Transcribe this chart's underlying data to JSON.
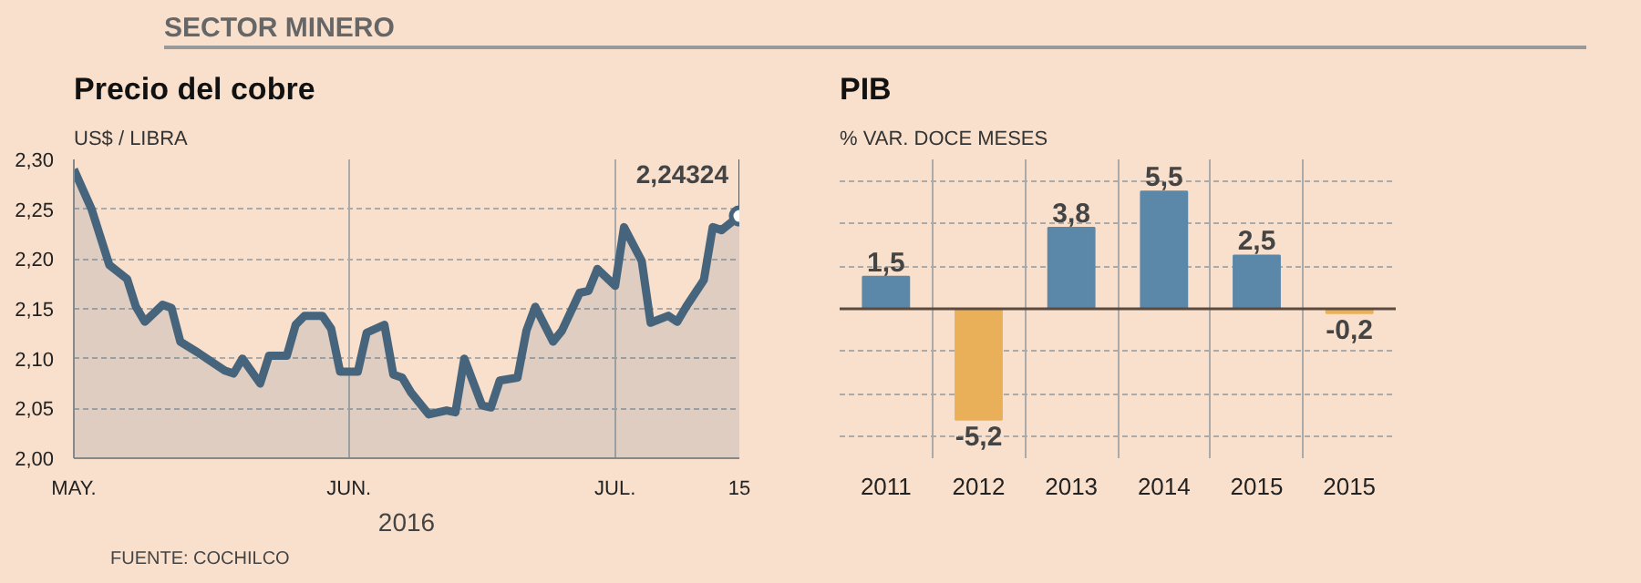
{
  "chart_data": [
    {
      "type": "area",
      "title": "Precio del cobre",
      "ylabel": "US$ / LIBRA",
      "xlabel": "2016",
      "annotations": [
        "SECTOR MINERO",
        "FUENTE: COCHILCO",
        {
          "text": "2,24324",
          "x": "2016-07-15",
          "y": 2.24324
        }
      ],
      "x": [
        "2016-05-01",
        "2016-05-03",
        "2016-05-05",
        "2016-05-07",
        "2016-05-08",
        "2016-05-09",
        "2016-05-11",
        "2016-05-12",
        "2016-05-13",
        "2016-05-15",
        "2016-05-16",
        "2016-05-18",
        "2016-05-19",
        "2016-05-20",
        "2016-05-22",
        "2016-05-23",
        "2016-05-25",
        "2016-05-26",
        "2016-05-27",
        "2016-05-29",
        "2016-05-30",
        "2016-05-31",
        "2016-06-02",
        "2016-06-03",
        "2016-06-05",
        "2016-06-06",
        "2016-06-07",
        "2016-06-08",
        "2016-06-10",
        "2016-06-12",
        "2016-06-13",
        "2016-06-14",
        "2016-06-16",
        "2016-06-17",
        "2016-06-18",
        "2016-06-20",
        "2016-06-21",
        "2016-06-22",
        "2016-06-24",
        "2016-06-25",
        "2016-06-27",
        "2016-06-28",
        "2016-06-29",
        "2016-07-01",
        "2016-07-02",
        "2016-07-04",
        "2016-07-05",
        "2016-07-07",
        "2016-07-08",
        "2016-07-09",
        "2016-07-11",
        "2016-07-12",
        "2016-07-13",
        "2016-07-15"
      ],
      "series": [
        {
          "color": "#46657d",
          "values": [
            2.29,
            2.25,
            2.194,
            2.18,
            2.152,
            2.137,
            2.154,
            2.151,
            2.117,
            2.106,
            2.1,
            2.088,
            2.085,
            2.1,
            2.075,
            2.103,
            2.103,
            2.134,
            2.143,
            2.143,
            2.13,
            2.087,
            2.087,
            2.126,
            2.134,
            2.084,
            2.081,
            2.066,
            2.044,
            2.048,
            2.046,
            2.1,
            2.053,
            2.051,
            2.078,
            2.081,
            2.128,
            2.152,
            2.117,
            2.128,
            2.166,
            2.168,
            2.19,
            2.173,
            2.232,
            2.198,
            2.136,
            2.143,
            2.137,
            2.152,
            2.179,
            2.232,
            2.229,
            2.24324
          ]
        }
      ],
      "xlim": [
        "2016-05-01",
        "2016-07-15"
      ],
      "xticks": [
        {
          "value": "2016-05-01",
          "label": "MAY."
        },
        {
          "value": "2016-06-01",
          "label": "JUN."
        },
        {
          "value": "2016-07-01",
          "label": "JUL."
        },
        {
          "value": "2016-07-15",
          "label": "15"
        }
      ],
      "ylim": [
        2.0,
        2.3
      ],
      "yticks": [
        {
          "value": 2.0,
          "label": "2,00"
        },
        {
          "value": 2.05,
          "label": "2,05"
        },
        {
          "value": 2.1,
          "label": "2,10"
        },
        {
          "value": 2.15,
          "label": "2,15"
        },
        {
          "value": 2.2,
          "label": "2,20"
        },
        {
          "value": 2.25,
          "label": "2,25"
        },
        {
          "value": 2.3,
          "label": "2,30"
        }
      ],
      "grid": true
    },
    {
      "type": "bar",
      "title": "PIB",
      "subtitle": "% VAR. DOCE MESES",
      "categories": [
        "2011",
        "2012",
        "2013",
        "2014",
        "2015",
        "2015"
      ],
      "values": [
        1.5,
        -5.2,
        3.8,
        5.5,
        2.5,
        -0.2
      ],
      "colors": [
        "#5b87a8",
        "#e9b059",
        "#5b87a8",
        "#5b87a8",
        "#5b87a8",
        "#e9b059"
      ],
      "value_labels": [
        "1,5",
        "-5,2",
        "3,8",
        "5,5",
        "2,5",
        "-0,2"
      ],
      "ylim": [
        -7,
        7
      ],
      "ref_lines": [
        {
          "axis": "y",
          "value": 0,
          "color": "#5a4a40"
        }
      ],
      "tick_labels": "x",
      "grid": true
    }
  ]
}
